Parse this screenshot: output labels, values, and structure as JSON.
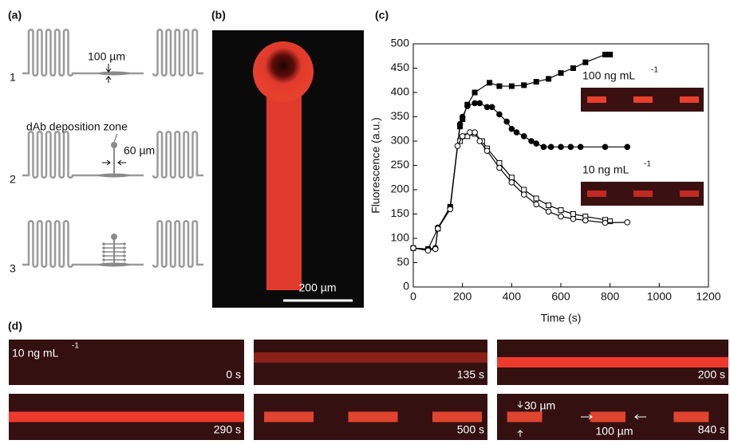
{
  "panel_a": {
    "label": "(a)",
    "rows": [
      "1",
      "2",
      "3"
    ],
    "width_label": "100 µm",
    "zone_label": "dAb deposition zone",
    "zone_width": "60 µm"
  },
  "panel_b": {
    "label": "(b)",
    "scale_bar": "200 µm"
  },
  "panel_c": {
    "label": "(c)"
  },
  "chart_data": {
    "type": "line",
    "x_label": "Time (s)",
    "y_label": "Fluorescence (a.u.)",
    "xlim": [
      0,
      1200
    ],
    "xticks": [
      0,
      200,
      400,
      600,
      800,
      1000,
      1200
    ],
    "ylim": [
      0,
      500
    ],
    "yticks": [
      0,
      50,
      100,
      150,
      200,
      250,
      300,
      350,
      400,
      450,
      500
    ],
    "insets": [
      {
        "label": "100 ng mL",
        "sup": "-1"
      },
      {
        "label": "10 ng mL",
        "sup": "-1"
      }
    ],
    "series": [
      {
        "color": "#000000",
        "marker": "square",
        "filled": true,
        "x": [
          0,
          60,
          100,
          150,
          190,
          200,
          220,
          250,
          310,
          350,
          400,
          450,
          500,
          550,
          600,
          650,
          700,
          780,
          800
        ],
        "values": [
          80,
          78,
          120,
          165,
          330,
          345,
          375,
          400,
          420,
          413,
          413,
          415,
          422,
          428,
          440,
          450,
          462,
          478,
          478
        ]
      },
      {
        "color": "#000000",
        "marker": "circle",
        "filled": true,
        "x": [
          0,
          60,
          90,
          100,
          150,
          190,
          200,
          220,
          250,
          270,
          300,
          320,
          350,
          380,
          400,
          420,
          450,
          480,
          500,
          530,
          560,
          600,
          640,
          680,
          780,
          870
        ],
        "values": [
          80,
          78,
          80,
          122,
          162,
          335,
          350,
          372,
          378,
          378,
          370,
          370,
          355,
          340,
          325,
          318,
          310,
          300,
          295,
          288,
          288,
          288,
          288,
          288,
          288,
          288
        ]
      },
      {
        "color": "#000000",
        "marker": "square",
        "filled": false,
        "x": [
          190,
          220,
          250,
          280,
          300,
          350,
          400,
          450,
          500,
          550,
          600,
          650,
          700,
          780,
          800
        ],
        "values": [
          300,
          310,
          315,
          300,
          285,
          255,
          225,
          200,
          182,
          168,
          158,
          150,
          145,
          138,
          135
        ]
      },
      {
        "color": "#000000",
        "marker": "circle",
        "filled": false,
        "x": [
          0,
          60,
          90,
          100,
          150,
          180,
          200,
          230,
          250,
          270,
          300,
          350,
          400,
          450,
          500,
          550,
          600,
          650,
          700,
          780,
          870
        ],
        "values": [
          80,
          75,
          78,
          120,
          160,
          290,
          310,
          318,
          318,
          300,
          280,
          245,
          215,
          190,
          170,
          155,
          145,
          140,
          137,
          132,
          133
        ]
      }
    ]
  },
  "panel_d": {
    "label": "(d)",
    "concentration": "10 ng mL",
    "sup": "-1",
    "frames": [
      "0 s",
      "135 s",
      "200 s",
      "290 s",
      "500 s",
      "840 s"
    ],
    "height_label": "30 µm",
    "length_label": "100 µm"
  }
}
